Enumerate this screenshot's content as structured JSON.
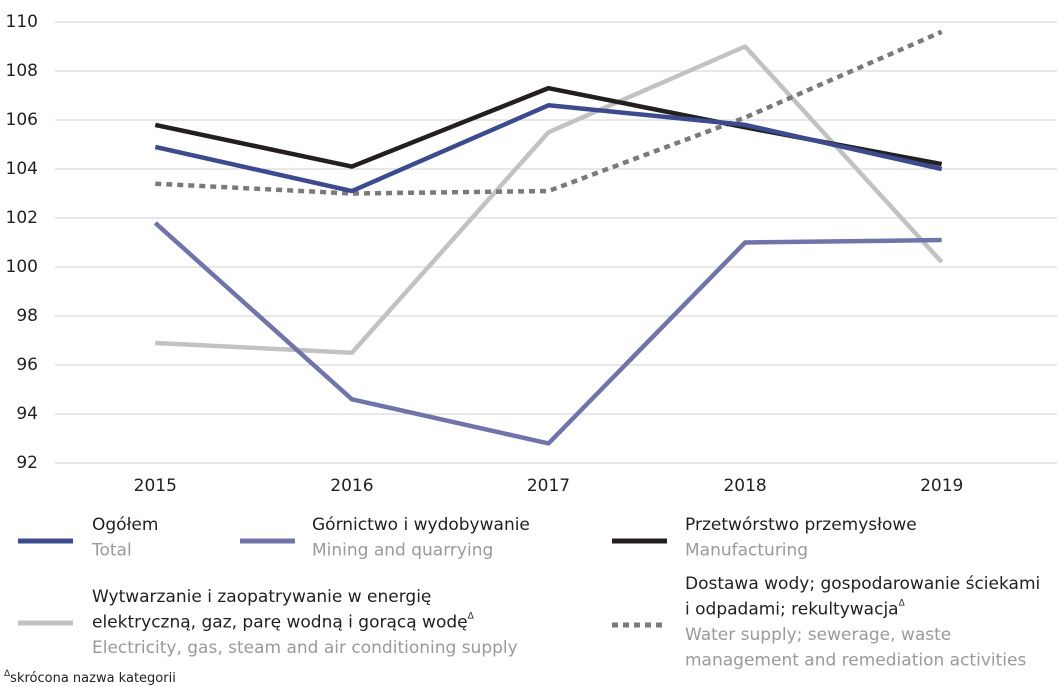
{
  "chart_data": {
    "type": "line",
    "categories": [
      "2015",
      "2016",
      "2017",
      "2018",
      "2019"
    ],
    "ylim": [
      92,
      110
    ],
    "yticks": [
      92,
      94,
      96,
      98,
      100,
      102,
      104,
      106,
      108,
      110
    ],
    "grid": true,
    "series": [
      {
        "name": [
          "Ogółem"
        ],
        "name_en": [
          "Total"
        ],
        "color": "#3c4a8e",
        "style": "solid",
        "values": [
          104.9,
          103.1,
          106.6,
          105.8,
          104.0
        ]
      },
      {
        "name": [
          "Górnictwo i wydobywanie"
        ],
        "name_en": [
          "Mining and quarrying"
        ],
        "color": "#7074a9",
        "style": "solid",
        "values": [
          101.8,
          94.6,
          92.8,
          101.0,
          101.1
        ]
      },
      {
        "name": [
          "Przetwórstwo przemysłowe"
        ],
        "name_en": [
          "Manufacturing"
        ],
        "color": "#231f20",
        "style": "solid",
        "values": [
          105.8,
          104.1,
          107.3,
          105.7,
          104.2
        ]
      },
      {
        "name": [
          "Wytwarzanie i zaopatrywanie w energię",
          "elektryczną, gaz, parę wodną i gorącą wodę"
        ],
        "mark": "Δ",
        "name_en": [
          "Electricity, gas, steam and air conditioning supply"
        ],
        "color": "#c2c2c2",
        "style": "solid",
        "values": [
          96.9,
          96.5,
          105.5,
          109.0,
          100.2
        ]
      },
      {
        "name": [
          "Dostawa wody; gospodarowanie ściekami",
          "i odpadami; rekultywacja"
        ],
        "mark": "Δ",
        "name_en": [
          "Water supply; sewerage, waste",
          "management and remediation activities"
        ],
        "color": "#7a7a7a",
        "style": "dotted",
        "values": [
          103.4,
          103.0,
          103.1,
          106.1,
          109.6
        ]
      }
    ],
    "footnote": {
      "mark": "Δ",
      "text": "skrócona nazwa kategorii"
    }
  }
}
